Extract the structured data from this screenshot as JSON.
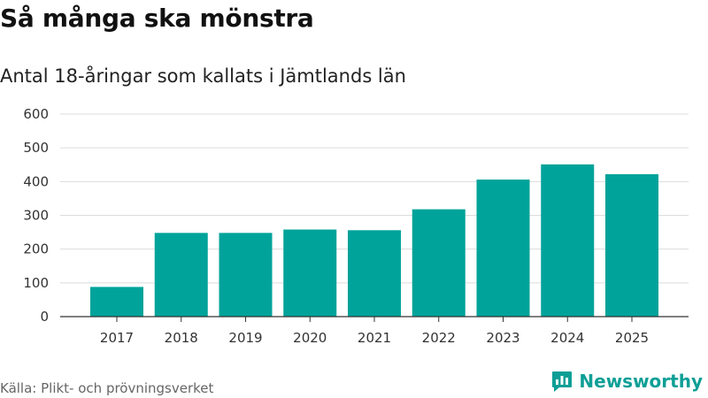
{
  "title": "Så många ska mönstra",
  "subtitle": "Antal 18-åringar som kallats i Jämtlands län",
  "source": "Källa: Plikt- och prövningsverket",
  "brand": {
    "name": "Newsworthy",
    "icon": "newsworthy-logo-icon",
    "color": "#0e9f96"
  },
  "colors": {
    "bar": "#00a39a",
    "grid": "#dcdcdc",
    "axis": "#333333"
  },
  "chart_data": {
    "type": "bar",
    "title": "Så många ska mönstra",
    "subtitle": "Antal 18-åringar som kallats i Jämtlands län",
    "xlabel": "",
    "ylabel": "",
    "categories": [
      "2017",
      "2018",
      "2019",
      "2020",
      "2021",
      "2022",
      "2023",
      "2024",
      "2025"
    ],
    "values": [
      88,
      248,
      248,
      258,
      256,
      318,
      406,
      451,
      422
    ],
    "ylim": [
      0,
      600
    ],
    "yticks": [
      0,
      100,
      200,
      300,
      400,
      500,
      600
    ],
    "grid": true,
    "legend": "none"
  }
}
